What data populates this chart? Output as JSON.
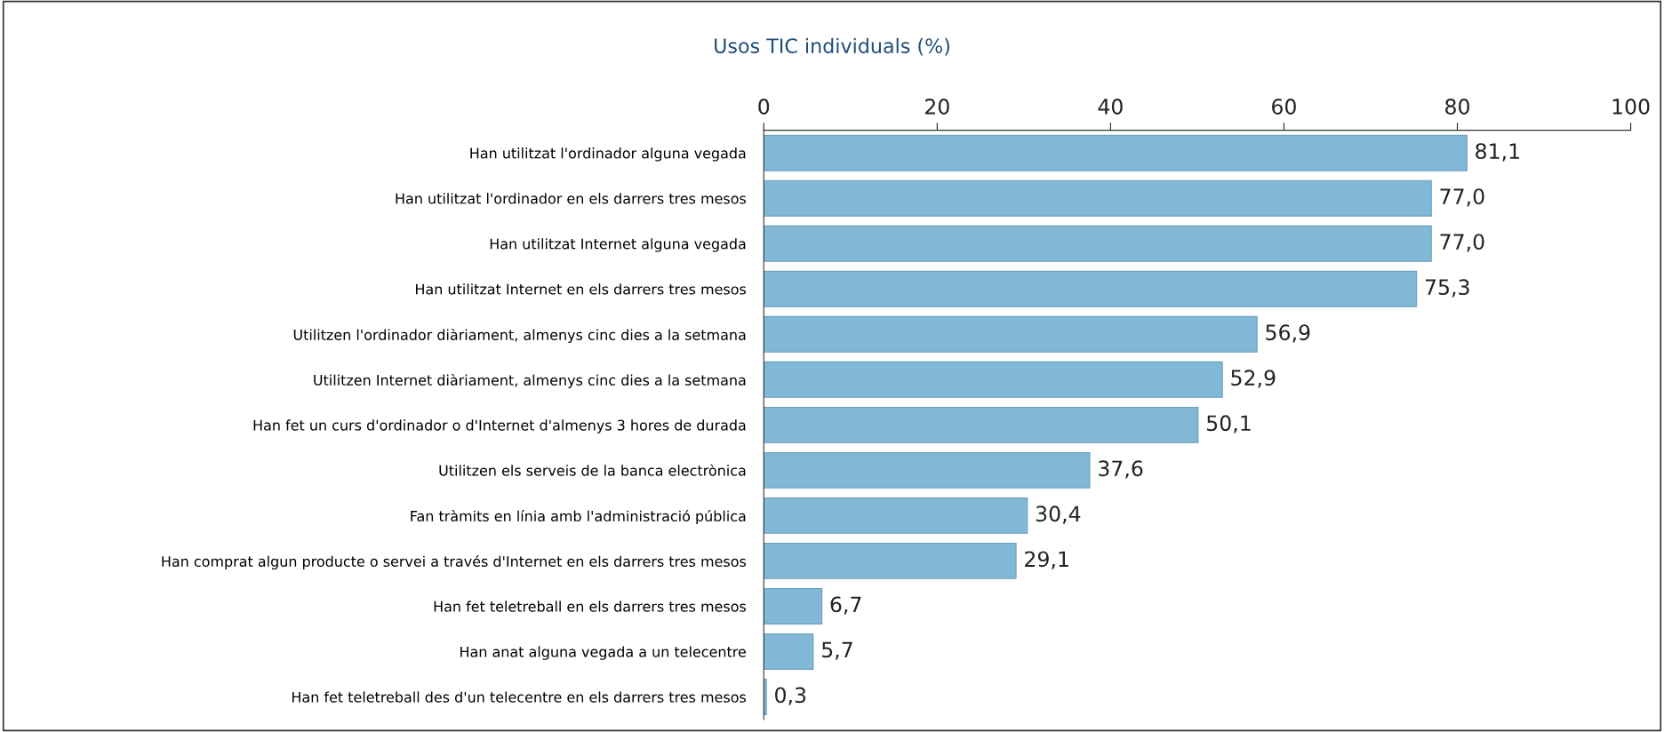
{
  "chart_data": {
    "type": "bar",
    "orientation": "horizontal",
    "title": "Usos TIC individuals (%)",
    "categories": [
      "Han utilitzat l'ordinador alguna vegada",
      "Han utilitzat l'ordinador en els darrers tres mesos",
      "Han utilitzat Internet alguna vegada",
      "Han utilitzat Internet en els darrers tres mesos",
      "Utilitzen l'ordinador diàriament, almenys cinc dies a la setmana",
      "Utilitzen Internet diàriament, almenys cinc dies a la setmana",
      "Han fet un curs d'ordinador o d'Internet d'almenys 3 hores de durada",
      "Utilitzen els serveis de la banca electrònica",
      "Fan tràmits en línia amb l'administració pública",
      "Han comprat algun producte o servei a través d'Internet en els darrers tres mesos",
      "Han fet teletreball en els darrers tres mesos",
      "Han anat alguna vegada a un telecentre",
      "Han fet teletreball des d'un telecentre en els darrers tres mesos"
    ],
    "values": [
      81.1,
      77.0,
      77.0,
      75.3,
      56.9,
      52.9,
      50.1,
      37.6,
      30.4,
      29.1,
      6.7,
      5.7,
      0.3
    ],
    "value_labels": [
      "81,1",
      "77,0",
      "77,0",
      "75,3",
      "56,9",
      "52,9",
      "50,1",
      "37,6",
      "30,4",
      "29,1",
      "6,7",
      "5,7",
      "0,3"
    ],
    "color": "#80b8d6",
    "xlim": [
      0,
      100
    ],
    "xticks": [
      0,
      20,
      40,
      60,
      80,
      100
    ],
    "grid": false,
    "legend": false
  }
}
